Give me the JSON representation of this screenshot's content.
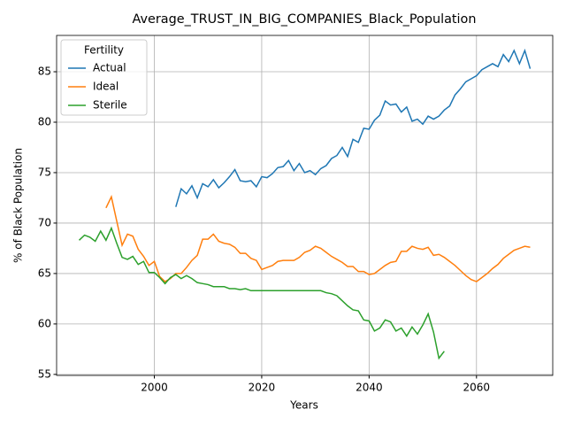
{
  "chart_data": {
    "type": "line",
    "title": "Average_TRUST_IN_BIG_COMPANIES_Black_Population",
    "xlabel": "Years",
    "ylabel": "% of Black Population",
    "legend_title": "Fertility",
    "legend": "upper left",
    "grid": true,
    "x": [
      1986,
      1987,
      1988,
      1989,
      1990,
      1991,
      1992,
      1993,
      1994,
      1995,
      1996,
      1997,
      1998,
      1999,
      2000,
      2001,
      2002,
      2003,
      2004,
      2005,
      2006,
      2007,
      2008,
      2009,
      2010,
      2011,
      2012,
      2013,
      2014,
      2015,
      2016,
      2017,
      2018,
      2019,
      2020,
      2021,
      2022,
      2023,
      2024,
      2025,
      2026,
      2027,
      2028,
      2029,
      2030,
      2031,
      2032,
      2033,
      2034,
      2035,
      2036,
      2037,
      2038,
      2039,
      2040,
      2041,
      2042,
      2043,
      2044,
      2045,
      2046,
      2047,
      2048,
      2049,
      2050,
      2051,
      2052,
      2053,
      2054,
      2055,
      2056,
      2057,
      2058,
      2059,
      2060,
      2061,
      2062,
      2063,
      2064,
      2065,
      2066,
      2067,
      2068,
      2069,
      2070
    ],
    "series": [
      {
        "name": "Actual",
        "color": "#1f77b4",
        "values": [
          null,
          null,
          null,
          null,
          null,
          null,
          null,
          null,
          null,
          null,
          null,
          null,
          null,
          null,
          null,
          null,
          null,
          null,
          71.6,
          73.4,
          72.9,
          73.7,
          72.5,
          73.9,
          73.6,
          74.3,
          73.5,
          74.0,
          74.6,
          75.3,
          74.2,
          74.1,
          74.2,
          73.6,
          74.6,
          74.5,
          74.9,
          75.5,
          75.6,
          76.2,
          75.2,
          75.9,
          75.0,
          75.2,
          74.8,
          75.4,
          75.7,
          76.4,
          76.7,
          77.5,
          76.6,
          78.3,
          78.0,
          79.4,
          79.3,
          80.2,
          80.7,
          82.1,
          81.7,
          81.8,
          81.0,
          81.5,
          80.1,
          80.3,
          79.8,
          80.6,
          80.3,
          80.6,
          81.2,
          81.6,
          82.7,
          83.3,
          84.0,
          84.3,
          84.6,
          85.2,
          85.5,
          85.8,
          85.5,
          86.7,
          86.0,
          87.1,
          85.8,
          87.1,
          85.3
        ]
      },
      {
        "name": "Ideal",
        "color": "#ff7f0e",
        "values": [
          null,
          null,
          null,
          null,
          null,
          71.5,
          72.6,
          70.2,
          67.8,
          68.9,
          68.7,
          67.4,
          66.7,
          65.8,
          66.2,
          64.7,
          64.2,
          64.5,
          65.0,
          65.0,
          65.6,
          66.3,
          66.8,
          68.4,
          68.4,
          68.9,
          68.2,
          68.0,
          67.9,
          67.6,
          67.0,
          67.0,
          66.5,
          66.3,
          65.4,
          65.6,
          65.8,
          66.2,
          66.3,
          66.3,
          66.3,
          66.6,
          67.1,
          67.3,
          67.7,
          67.5,
          67.1,
          66.7,
          66.4,
          66.1,
          65.7,
          65.7,
          65.2,
          65.2,
          64.9,
          65.0,
          65.4,
          65.8,
          66.1,
          66.2,
          67.2,
          67.2,
          67.7,
          67.5,
          67.4,
          67.6,
          66.8,
          66.9,
          66.6,
          66.2,
          65.8,
          65.3,
          64.8,
          64.4,
          64.2,
          64.6,
          65.0,
          65.5,
          65.9,
          66.5,
          66.9,
          67.3,
          67.5,
          67.7,
          67.6
        ]
      },
      {
        "name": "Sterile",
        "color": "#2ca02c",
        "values": [
          68.3,
          68.8,
          68.6,
          68.2,
          69.2,
          68.3,
          69.5,
          68.0,
          66.6,
          66.4,
          66.7,
          65.9,
          66.2,
          65.1,
          65.1,
          64.6,
          64.0,
          64.6,
          64.9,
          64.5,
          64.8,
          64.5,
          64.1,
          64.0,
          63.9,
          63.7,
          63.7,
          63.7,
          63.5,
          63.5,
          63.4,
          63.5,
          63.3,
          63.3,
          63.3,
          63.3,
          63.3,
          63.3,
          63.3,
          63.3,
          63.3,
          63.3,
          63.3,
          63.3,
          63.3,
          63.3,
          63.1,
          63.0,
          62.8,
          62.3,
          61.8,
          61.4,
          61.3,
          60.4,
          60.3,
          59.3,
          59.6,
          60.4,
          60.2,
          59.3,
          59.6,
          58.8,
          59.7,
          59.0,
          59.9,
          61.0,
          59.2,
          56.6,
          57.3,
          null,
          null,
          null,
          null,
          null,
          null,
          null,
          null,
          null,
          null,
          null,
          null,
          null,
          null,
          null,
          null
        ]
      }
    ],
    "xlim": [
      1981.8,
      2074.2
    ],
    "xticks": [
      2000,
      2020,
      2040,
      2060
    ],
    "ylim": [
      54.9,
      88.6
    ],
    "yticks": [
      55,
      60,
      65,
      70,
      75,
      80,
      85
    ]
  }
}
